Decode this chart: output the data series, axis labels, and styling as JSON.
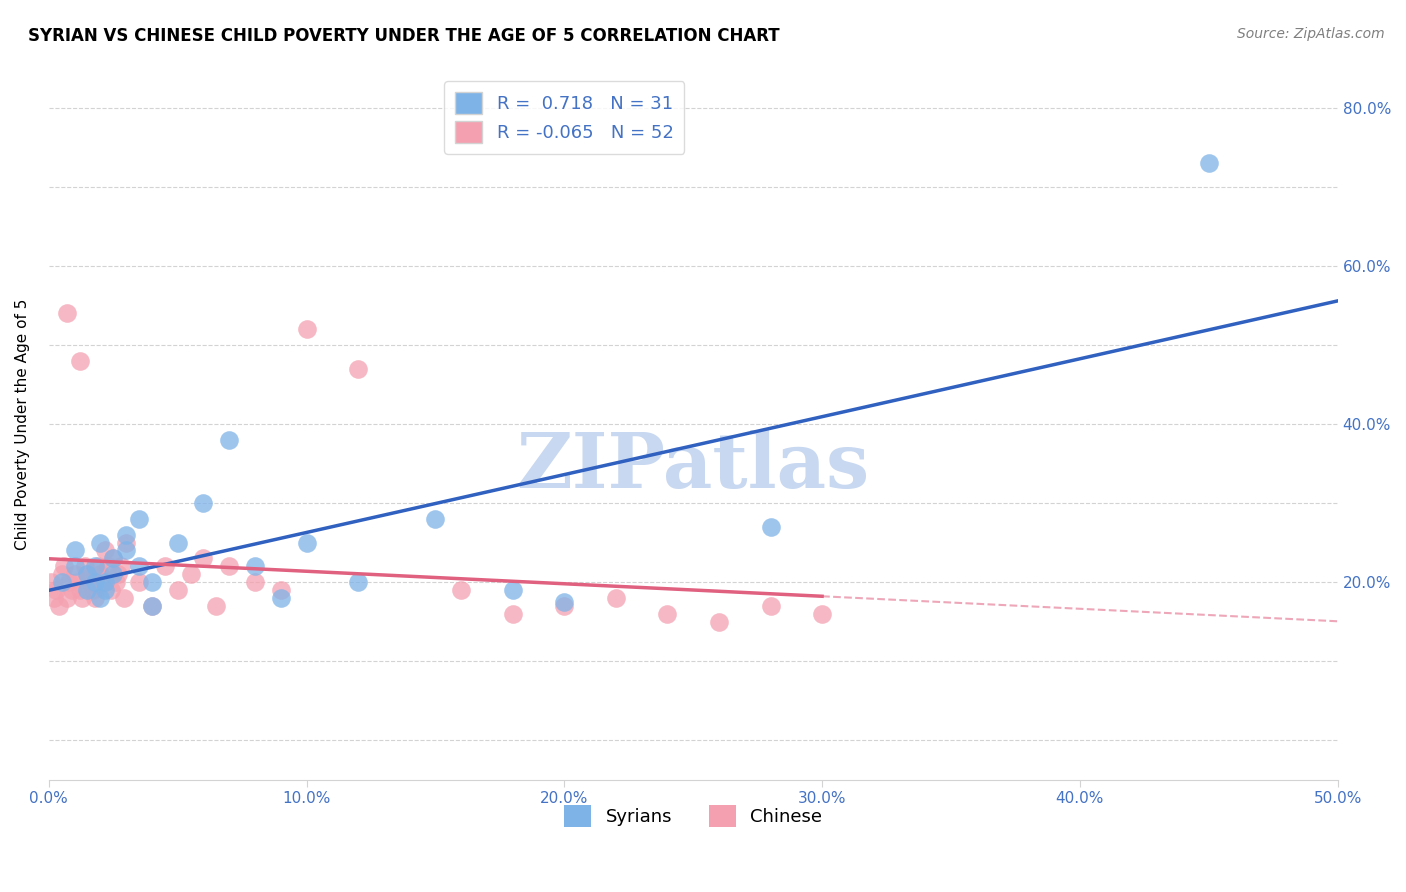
{
  "title": "SYRIAN VS CHINESE CHILD POVERTY UNDER THE AGE OF 5 CORRELATION CHART",
  "source": "Source: ZipAtlas.com",
  "ylabel": "Child Poverty Under the Age of 5",
  "yticks": [
    0.0,
    0.2,
    0.4,
    0.6,
    0.8
  ],
  "ytick_labels_right": [
    "",
    "20.0%",
    "40.0%",
    "60.0%",
    "80.0%"
  ],
  "xticks": [
    0.0,
    0.1,
    0.2,
    0.3,
    0.4,
    0.5
  ],
  "xtick_labels": [
    "0.0%",
    "10.0%",
    "20.0%",
    "30.0%",
    "40.0%",
    "50.0%"
  ],
  "xlim": [
    0.0,
    0.5
  ],
  "ylim": [
    -0.05,
    0.85
  ],
  "R_blue": 0.718,
  "N_blue": 31,
  "R_pink": -0.065,
  "N_pink": 52,
  "blue_color": "#7EB3E8",
  "pink_color": "#F4A0B0",
  "blue_line_color": "#3060C0",
  "pink_line_color": "#E06080",
  "watermark": "ZIPatlas",
  "watermark_color": "#C8D8F0",
  "syrians_x": [
    0.005,
    0.01,
    0.01,
    0.015,
    0.015,
    0.018,
    0.018,
    0.02,
    0.02,
    0.022,
    0.022,
    0.025,
    0.025,
    0.03,
    0.03,
    0.035,
    0.035,
    0.04,
    0.04,
    0.05,
    0.06,
    0.07,
    0.08,
    0.09,
    0.1,
    0.12,
    0.15,
    0.18,
    0.2,
    0.28,
    0.45
  ],
  "syrians_y": [
    0.2,
    0.22,
    0.24,
    0.19,
    0.21,
    0.2,
    0.22,
    0.18,
    0.25,
    0.2,
    0.19,
    0.23,
    0.21,
    0.24,
    0.26,
    0.22,
    0.28,
    0.2,
    0.17,
    0.25,
    0.3,
    0.38,
    0.22,
    0.18,
    0.25,
    0.2,
    0.28,
    0.19,
    0.175,
    0.27,
    0.73
  ],
  "chinese_x": [
    0.001,
    0.002,
    0.003,
    0.004,
    0.005,
    0.006,
    0.007,
    0.008,
    0.009,
    0.01,
    0.011,
    0.012,
    0.013,
    0.014,
    0.015,
    0.016,
    0.017,
    0.018,
    0.019,
    0.02,
    0.021,
    0.022,
    0.023,
    0.024,
    0.025,
    0.026,
    0.027,
    0.028,
    0.029,
    0.03,
    0.035,
    0.04,
    0.045,
    0.05,
    0.055,
    0.06,
    0.065,
    0.07,
    0.08,
    0.09,
    0.1,
    0.12,
    0.007,
    0.012,
    0.16,
    0.18,
    0.2,
    0.22,
    0.24,
    0.26,
    0.28,
    0.3
  ],
  "chinese_y": [
    0.2,
    0.18,
    0.19,
    0.17,
    0.21,
    0.22,
    0.18,
    0.2,
    0.19,
    0.21,
    0.2,
    0.19,
    0.18,
    0.22,
    0.21,
    0.2,
    0.19,
    0.18,
    0.22,
    0.21,
    0.2,
    0.24,
    0.22,
    0.19,
    0.23,
    0.2,
    0.21,
    0.22,
    0.18,
    0.25,
    0.2,
    0.17,
    0.22,
    0.19,
    0.21,
    0.23,
    0.17,
    0.22,
    0.2,
    0.19,
    0.52,
    0.47,
    0.54,
    0.48,
    0.19,
    0.16,
    0.17,
    0.18,
    0.16,
    0.15,
    0.17,
    0.16
  ]
}
